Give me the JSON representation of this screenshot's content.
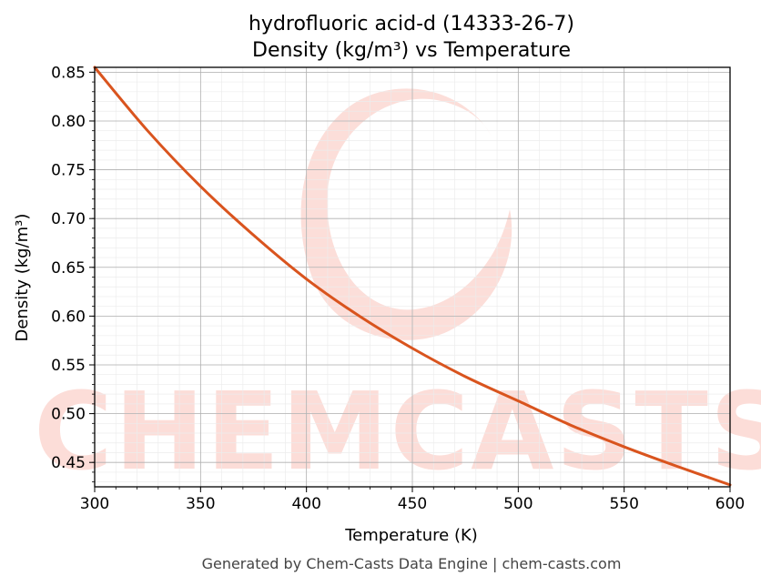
{
  "chart_data": {
    "type": "line",
    "title": "hydrofluoric acid-d (14333-26-7)",
    "subtitle": "Density (kg/m³) vs Temperature",
    "xlabel": "Temperature (K)",
    "ylabel": "Density (kg/m³)",
    "xlim": [
      300,
      600
    ],
    "ylim": [
      0.425,
      0.855
    ],
    "x_ticks": [
      300,
      350,
      400,
      450,
      500,
      550,
      600
    ],
    "y_ticks": [
      0.45,
      0.5,
      0.55,
      0.6,
      0.65,
      0.7,
      0.75,
      0.8,
      0.85
    ],
    "grid": true,
    "series": [
      {
        "color": "#d9541e",
        "x": [
          300,
          325,
          350,
          375,
          400,
          425,
          450,
          475,
          500,
          525,
          550,
          575,
          600
        ],
        "y": [
          0.855,
          0.79,
          0.733,
          0.683,
          0.638,
          0.6,
          0.567,
          0.538,
          0.513,
          0.488,
          0.466,
          0.446,
          0.427
        ]
      }
    ]
  },
  "watermark": {
    "text": "CHEMCASTS",
    "color": "#fcd8d2"
  },
  "footer": "Generated by Chem-Casts Data Engine | chem-casts.com"
}
